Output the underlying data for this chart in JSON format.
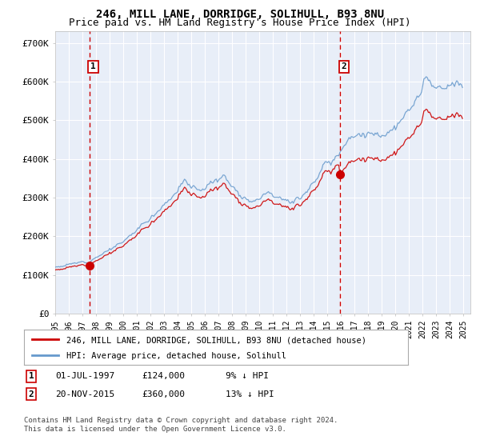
{
  "title": "246, MILL LANE, DORRIDGE, SOLIHULL, B93 8NU",
  "subtitle": "Price paid vs. HM Land Registry's House Price Index (HPI)",
  "ylim": [
    0,
    730000
  ],
  "yticks": [
    0,
    100000,
    200000,
    300000,
    400000,
    500000,
    600000,
    700000
  ],
  "ytick_labels": [
    "£0",
    "£100K",
    "£200K",
    "£300K",
    "£400K",
    "£500K",
    "£600K",
    "£700K"
  ],
  "sale1_year": 1997.5,
  "sale1_price": 124000,
  "sale2_year": 2015.9,
  "sale2_price": 360000,
  "legend_line1": "246, MILL LANE, DORRIDGE, SOLIHULL, B93 8NU (detached house)",
  "legend_line2": "HPI: Average price, detached house, Solihull",
  "footer1": "Contains HM Land Registry data © Crown copyright and database right 2024.",
  "footer2": "This data is licensed under the Open Government Licence v3.0.",
  "background_color": "#e8eef8",
  "grid_color": "#ffffff",
  "line_red": "#cc0000",
  "line_blue": "#6699cc",
  "title_fontsize": 10,
  "subtitle_fontsize": 9,
  "xmin": 1995,
  "xmax": 2025.5
}
